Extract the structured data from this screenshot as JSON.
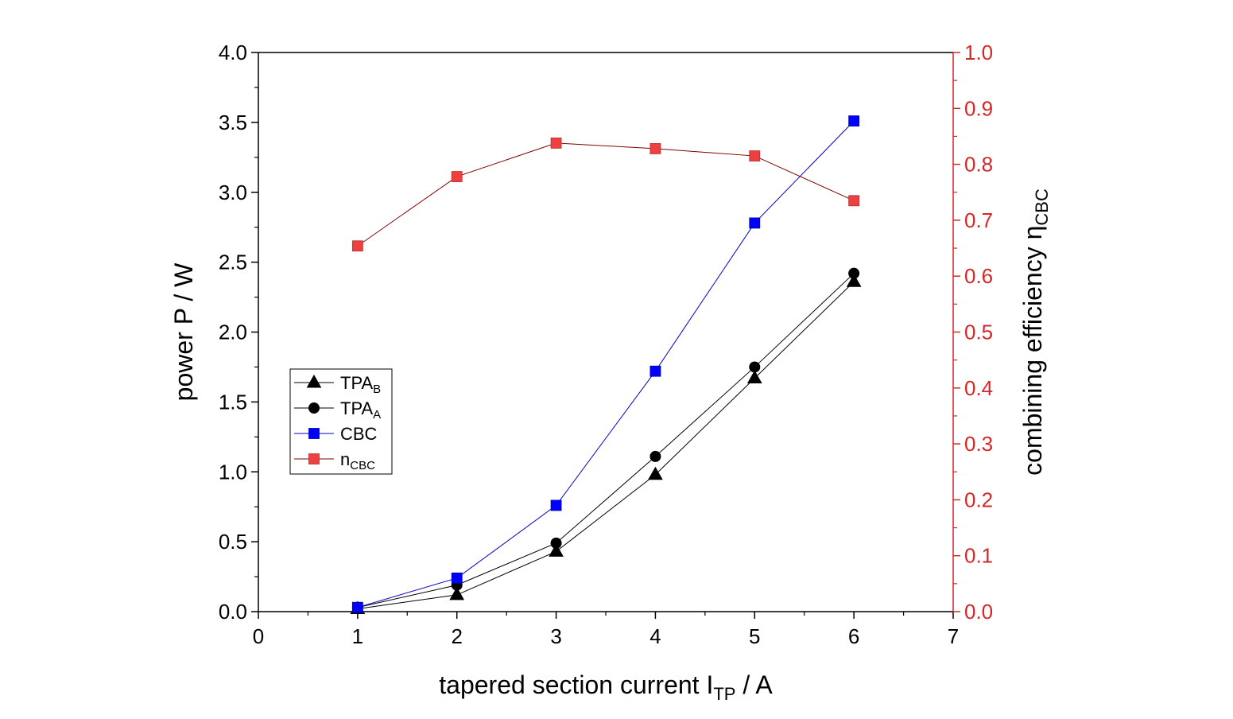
{
  "chart_data": {
    "type": "line",
    "x": [
      1,
      2,
      3,
      4,
      5,
      6
    ],
    "xlabel": {
      "main": "tapered section current I",
      "sub": "TP",
      "tail": " / A"
    },
    "ylabel": "power P / W",
    "y2label": {
      "main": "combining efficiency η",
      "sub": "CBC"
    },
    "xlim": [
      0,
      7
    ],
    "ylim": [
      0,
      4.0
    ],
    "y2lim": [
      0,
      1.0
    ],
    "xticks": [
      "0",
      "1",
      "2",
      "3",
      "4",
      "5",
      "6",
      "7"
    ],
    "yticks": [
      "0.0",
      "0.5",
      "1.0",
      "1.5",
      "2.0",
      "2.5",
      "3.0",
      "3.5",
      "4.0"
    ],
    "y2ticks": [
      "0.0",
      "0.1",
      "0.2",
      "0.3",
      "0.4",
      "0.5",
      "0.6",
      "0.7",
      "0.8",
      "0.9",
      "1.0"
    ],
    "grid": false,
    "legend_position": "center-left",
    "right_axis_color": "#d62728",
    "series": [
      {
        "name": "TPA",
        "sub": "B",
        "axis": "left",
        "marker": "triangle",
        "color": "#000000",
        "line_color": "#000000",
        "values": [
          0.02,
          0.12,
          0.43,
          0.98,
          1.67,
          2.36
        ]
      },
      {
        "name": "TPA",
        "sub": "A",
        "axis": "left",
        "marker": "circle",
        "color": "#000000",
        "line_color": "#000000",
        "values": [
          0.03,
          0.19,
          0.49,
          1.11,
          1.75,
          2.42
        ]
      },
      {
        "name": "CBC",
        "sub": "",
        "axis": "left",
        "marker": "square",
        "color": "#0000ff",
        "line_color": "#0000cc",
        "values": [
          0.03,
          0.24,
          0.76,
          1.72,
          2.78,
          3.51
        ]
      },
      {
        "name": "n",
        "sub": "CBC",
        "axis": "right",
        "marker": "square",
        "color": "#ef4040",
        "line_color": "#800000",
        "values": [
          0.654,
          0.778,
          0.838,
          0.828,
          0.815,
          0.735
        ]
      }
    ]
  }
}
